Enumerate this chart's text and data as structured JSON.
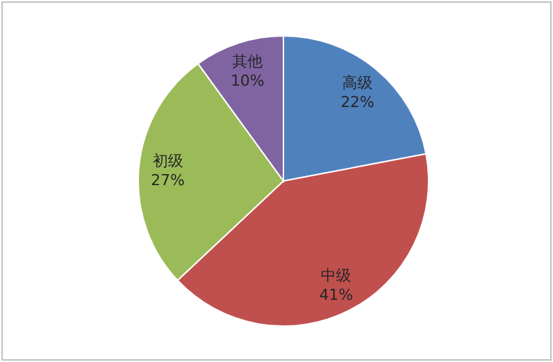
{
  "chart_data": {
    "type": "pie",
    "categories": [
      "高级",
      "中级",
      "初级",
      "其他"
    ],
    "values": [
      22,
      41,
      27,
      10
    ],
    "value_labels": [
      "22%",
      "41%",
      "27%",
      "10%"
    ],
    "colors": [
      "#4f81bd",
      "#c0504d",
      "#9bbb59",
      "#8064a2"
    ]
  }
}
